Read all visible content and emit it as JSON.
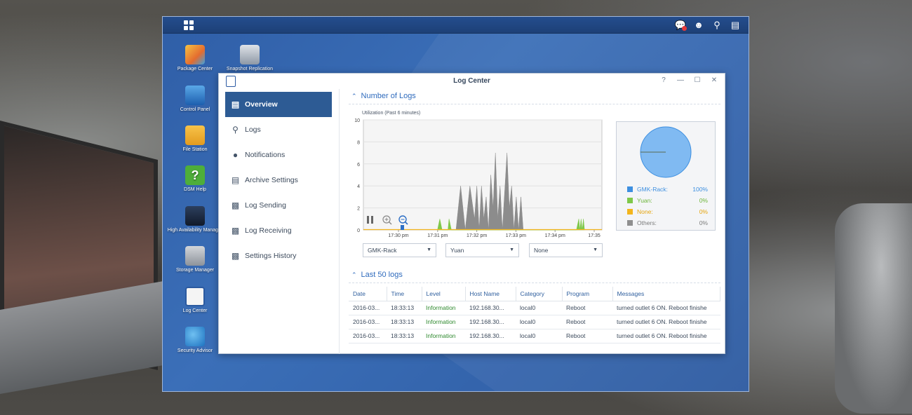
{
  "desktop_icons": [
    {
      "label": "Package Center",
      "icon": "package-center-icon"
    },
    {
      "label": "Snapshot Replication",
      "icon": "snapshot-replication-icon"
    },
    {
      "label": "Control Panel",
      "icon": "control-panel-icon"
    },
    {
      "label": "File Station",
      "icon": "file-station-icon"
    },
    {
      "label": "DSM Help",
      "icon": "dsm-help-icon"
    },
    {
      "label": "High Availability Manager",
      "icon": "high-availability-icon"
    },
    {
      "label": "Storage Manager",
      "icon": "storage-manager-icon"
    },
    {
      "label": "Log Center",
      "icon": "log-center-icon"
    },
    {
      "label": "Security Advisor",
      "icon": "security-advisor-icon"
    }
  ],
  "window": {
    "title": "Log Center",
    "controls": {
      "help": "?",
      "minimize": "—",
      "maximize": "☐",
      "close": "✕"
    }
  },
  "sidebar": {
    "items": [
      {
        "label": "Overview",
        "icon": "overview-icon",
        "active": true
      },
      {
        "label": "Logs",
        "icon": "search-icon"
      },
      {
        "label": "Notifications",
        "icon": "chat-bubble-icon"
      },
      {
        "label": "Archive Settings",
        "icon": "archive-icon"
      },
      {
        "label": "Log Sending",
        "icon": "clipboard-send-icon"
      },
      {
        "label": "Log Receiving",
        "icon": "clipboard-receive-icon"
      },
      {
        "label": "Settings History",
        "icon": "clipboard-history-icon"
      }
    ]
  },
  "sections": {
    "number_of_logs": "Number of Logs",
    "utilization": "Utilization (Past 6 minutes)",
    "last_logs": "Last 50 logs"
  },
  "selects": {
    "first": "GMK-Rack",
    "second": "Yuan",
    "third": "None"
  },
  "chart_data": {
    "type": "area",
    "title": "Utilization (Past 6 minutes)",
    "x_ticks": [
      "17:30 pm",
      "17:31 pm",
      "17:32 pm",
      "17:33 pm",
      "17:34 pm",
      "17:35"
    ],
    "y_ticks": [
      "0",
      "2",
      "4",
      "6",
      "8",
      "10"
    ],
    "ylim": [
      0,
      10
    ],
    "xlim": [
      17.483,
      17.586
    ],
    "series": [
      {
        "name": "GMK-Rack",
        "color": "#8c8c8c",
        "points": [
          [
            17.523,
            0
          ],
          [
            17.525,
            4
          ],
          [
            17.527,
            0
          ],
          [
            17.529,
            4
          ],
          [
            17.531,
            1
          ],
          [
            17.532,
            4
          ],
          [
            17.533,
            0
          ],
          [
            17.534,
            4
          ],
          [
            17.535,
            1
          ],
          [
            17.536,
            3
          ],
          [
            17.537,
            0
          ],
          [
            17.538,
            5
          ],
          [
            17.539,
            2
          ],
          [
            17.54,
            7
          ],
          [
            17.541,
            1
          ],
          [
            17.542,
            4
          ],
          [
            17.543,
            0
          ],
          [
            17.545,
            7
          ],
          [
            17.546,
            2
          ],
          [
            17.547,
            4
          ],
          [
            17.548,
            0
          ],
          [
            17.549,
            3
          ],
          [
            17.55,
            0
          ],
          [
            17.551,
            3
          ],
          [
            17.552,
            0
          ]
        ]
      },
      {
        "name": "Yuan",
        "color": "#7fc84a",
        "points": [
          [
            17.515,
            0
          ],
          [
            17.516,
            1
          ],
          [
            17.517,
            0
          ],
          [
            17.5195,
            0
          ],
          [
            17.52,
            1
          ],
          [
            17.521,
            0
          ],
          [
            17.575,
            0
          ],
          [
            17.576,
            1
          ],
          [
            17.5765,
            0
          ],
          [
            17.577,
            1
          ],
          [
            17.5775,
            0
          ],
          [
            17.578,
            1
          ],
          [
            17.5785,
            0
          ]
        ]
      }
    ],
    "pie": {
      "type": "pie",
      "slices": [
        {
          "name": "GMK-Rack:",
          "value": 100,
          "label": "100%",
          "color": "#3d8fe0"
        },
        {
          "name": "Yuan:",
          "value": 0,
          "label": "0%",
          "color": "#7fc84a"
        },
        {
          "name": "None:",
          "value": 0,
          "label": "0%",
          "color": "#f3b51c"
        },
        {
          "name": "Others:",
          "value": 0,
          "label": "0%",
          "color": "#8f8f8f"
        }
      ]
    }
  },
  "table": {
    "columns": [
      "Date",
      "Time",
      "Level",
      "Host Name",
      "Category",
      "Program",
      "Messages"
    ],
    "rows": [
      [
        "2016-03...",
        "18:33:13",
        "Information",
        "192.168.30...",
        "local0",
        "Reboot",
        "turned outlet 6 ON. Reboot finishe"
      ],
      [
        "2016-03...",
        "18:33:13",
        "Information",
        "192.168.30...",
        "local0",
        "Reboot",
        "turned outlet 6 ON. Reboot finishe"
      ],
      [
        "2016-03...",
        "18:33:13",
        "Information",
        "192.168.30...",
        "local0",
        "Reboot",
        "turned outlet 6 ON. Reboot finishe"
      ]
    ]
  }
}
